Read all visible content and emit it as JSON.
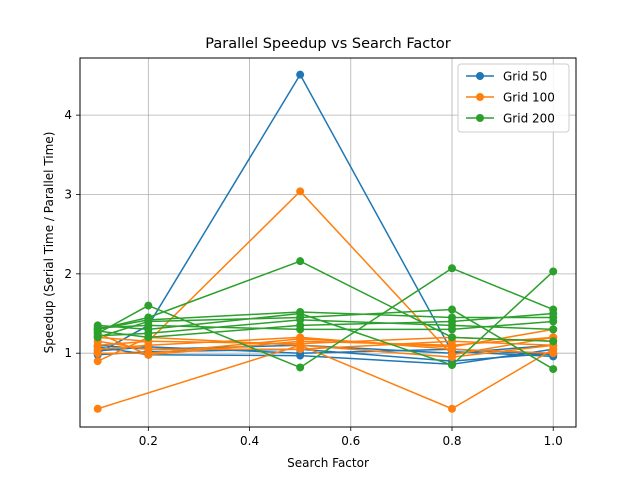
{
  "chart_data": {
    "type": "line",
    "title": "Parallel Speedup vs Search Factor",
    "xlabel": "Search Factor",
    "ylabel": "Speedup (Serial Time / Parallel Time)",
    "xlim": [
      0.065,
      1.045
    ],
    "ylim": [
      0.07,
      4.72
    ],
    "xticks": [
      0.2,
      0.4,
      0.6,
      0.8,
      1.0
    ],
    "xtick_labels": [
      "0.2",
      "0.4",
      "0.6",
      "0.8",
      "1.0"
    ],
    "yticks": [
      1,
      2,
      3,
      4
    ],
    "ytick_labels": [
      "1",
      "2",
      "3",
      "4"
    ],
    "grid": true,
    "legend_position": "top-right",
    "colors": {
      "Grid 50": "#1f77b4",
      "Grid 100": "#ff7f0e",
      "Grid 200": "#2ca02c"
    },
    "series": [
      {
        "name": "Grid 50",
        "x": [
          0.1,
          0.2,
          0.5,
          0.8,
          1.0
        ],
        "y": [
          1.0,
          1.35,
          4.51,
          1.02,
          0.96
        ]
      },
      {
        "name": "Grid 50",
        "x": [
          0.1,
          0.2,
          0.5,
          0.8,
          1.0
        ],
        "y": [
          1.08,
          0.98,
          0.97,
          0.86,
          1.05
        ]
      },
      {
        "name": "Grid 50",
        "x": [
          0.1,
          0.2,
          0.5,
          0.8,
          1.0
        ],
        "y": [
          0.98,
          1.02,
          1.05,
          0.9,
          1.0
        ]
      },
      {
        "name": "Grid 50",
        "x": [
          0.1,
          0.2,
          0.5,
          0.8,
          1.0
        ],
        "y": [
          1.1,
          1.05,
          1.1,
          1.0,
          1.1
        ]
      },
      {
        "name": "Grid 50",
        "x": [
          0.1,
          0.2,
          0.5,
          0.8,
          1.0
        ],
        "y": [
          1.03,
          1.08,
          1.0,
          1.05,
          0.98
        ]
      },
      {
        "name": "Grid 100",
        "x": [
          0.1,
          0.2,
          0.5,
          0.8,
          1.0
        ],
        "y": [
          1.1,
          1.15,
          3.04,
          0.98,
          1.2
        ]
      },
      {
        "name": "Grid 100",
        "x": [
          0.1,
          0.5,
          0.8,
          1.0
        ],
        "y": [
          0.3,
          1.1,
          0.95,
          1.1
        ]
      },
      {
        "name": "Grid 100",
        "x": [
          0.1,
          0.2,
          0.5,
          0.8,
          1.0
        ],
        "y": [
          0.9,
          1.2,
          1.1,
          0.3,
          1.05
        ]
      },
      {
        "name": "Grid 100",
        "x": [
          0.1,
          0.2,
          0.5,
          0.8,
          1.0
        ],
        "y": [
          1.25,
          0.98,
          1.15,
          1.1,
          1.2
        ]
      },
      {
        "name": "Grid 100",
        "x": [
          0.1,
          0.2,
          0.5,
          0.8,
          1.0
        ],
        "y": [
          1.05,
          1.1,
          1.2,
          1.05,
          1.0
        ]
      },
      {
        "name": "Grid 100",
        "x": [
          0.1,
          0.2,
          0.5,
          0.8,
          1.0
        ],
        "y": [
          1.15,
          1.05,
          1.05,
          1.15,
          1.1
        ]
      },
      {
        "name": "Grid 100",
        "x": [
          0.1,
          0.2,
          0.5,
          0.8,
          1.0
        ],
        "y": [
          1.2,
          1.15,
          1.12,
          1.2,
          1.15
        ]
      },
      {
        "name": "Grid 100",
        "x": [
          0.1,
          0.2,
          0.5,
          0.8,
          1.0
        ],
        "y": [
          1.0,
          1.0,
          1.18,
          1.08,
          1.3
        ]
      },
      {
        "name": "Grid 200",
        "x": [
          0.1,
          0.2,
          0.5,
          0.8,
          1.0
        ],
        "y": [
          1.3,
          1.45,
          2.16,
          1.2,
          1.15
        ]
      },
      {
        "name": "Grid 200",
        "x": [
          0.1,
          0.2,
          0.5,
          0.8,
          1.0
        ],
        "y": [
          1.25,
          1.6,
          0.82,
          2.07,
          1.55
        ]
      },
      {
        "name": "Grid 200",
        "x": [
          0.1,
          0.2,
          0.5,
          0.8,
          1.0
        ],
        "y": [
          1.35,
          1.3,
          1.5,
          0.85,
          2.03
        ]
      },
      {
        "name": "Grid 200",
        "x": [
          0.1,
          0.2,
          0.5,
          0.8,
          1.0
        ],
        "y": [
          1.2,
          1.4,
          1.45,
          1.55,
          0.8
        ]
      },
      {
        "name": "Grid 200",
        "x": [
          0.1,
          0.2,
          0.5,
          0.8,
          1.0
        ],
        "y": [
          1.28,
          1.2,
          1.35,
          1.4,
          1.5
        ]
      },
      {
        "name": "Grid 200",
        "x": [
          0.1,
          0.2,
          0.5,
          0.8,
          1.0
        ],
        "y": [
          1.32,
          1.35,
          1.3,
          1.3,
          1.4
        ]
      },
      {
        "name": "Grid 200",
        "x": [
          0.1,
          0.2,
          0.5,
          0.8,
          1.0
        ],
        "y": [
          1.22,
          1.25,
          1.42,
          1.35,
          1.3
        ]
      },
      {
        "name": "Grid 200",
        "x": [
          0.1,
          0.2,
          0.5,
          0.8,
          1.0
        ],
        "y": [
          1.3,
          1.42,
          1.52,
          1.45,
          1.45
        ]
      }
    ],
    "legend": [
      "Grid 50",
      "Grid 100",
      "Grid 200"
    ]
  }
}
